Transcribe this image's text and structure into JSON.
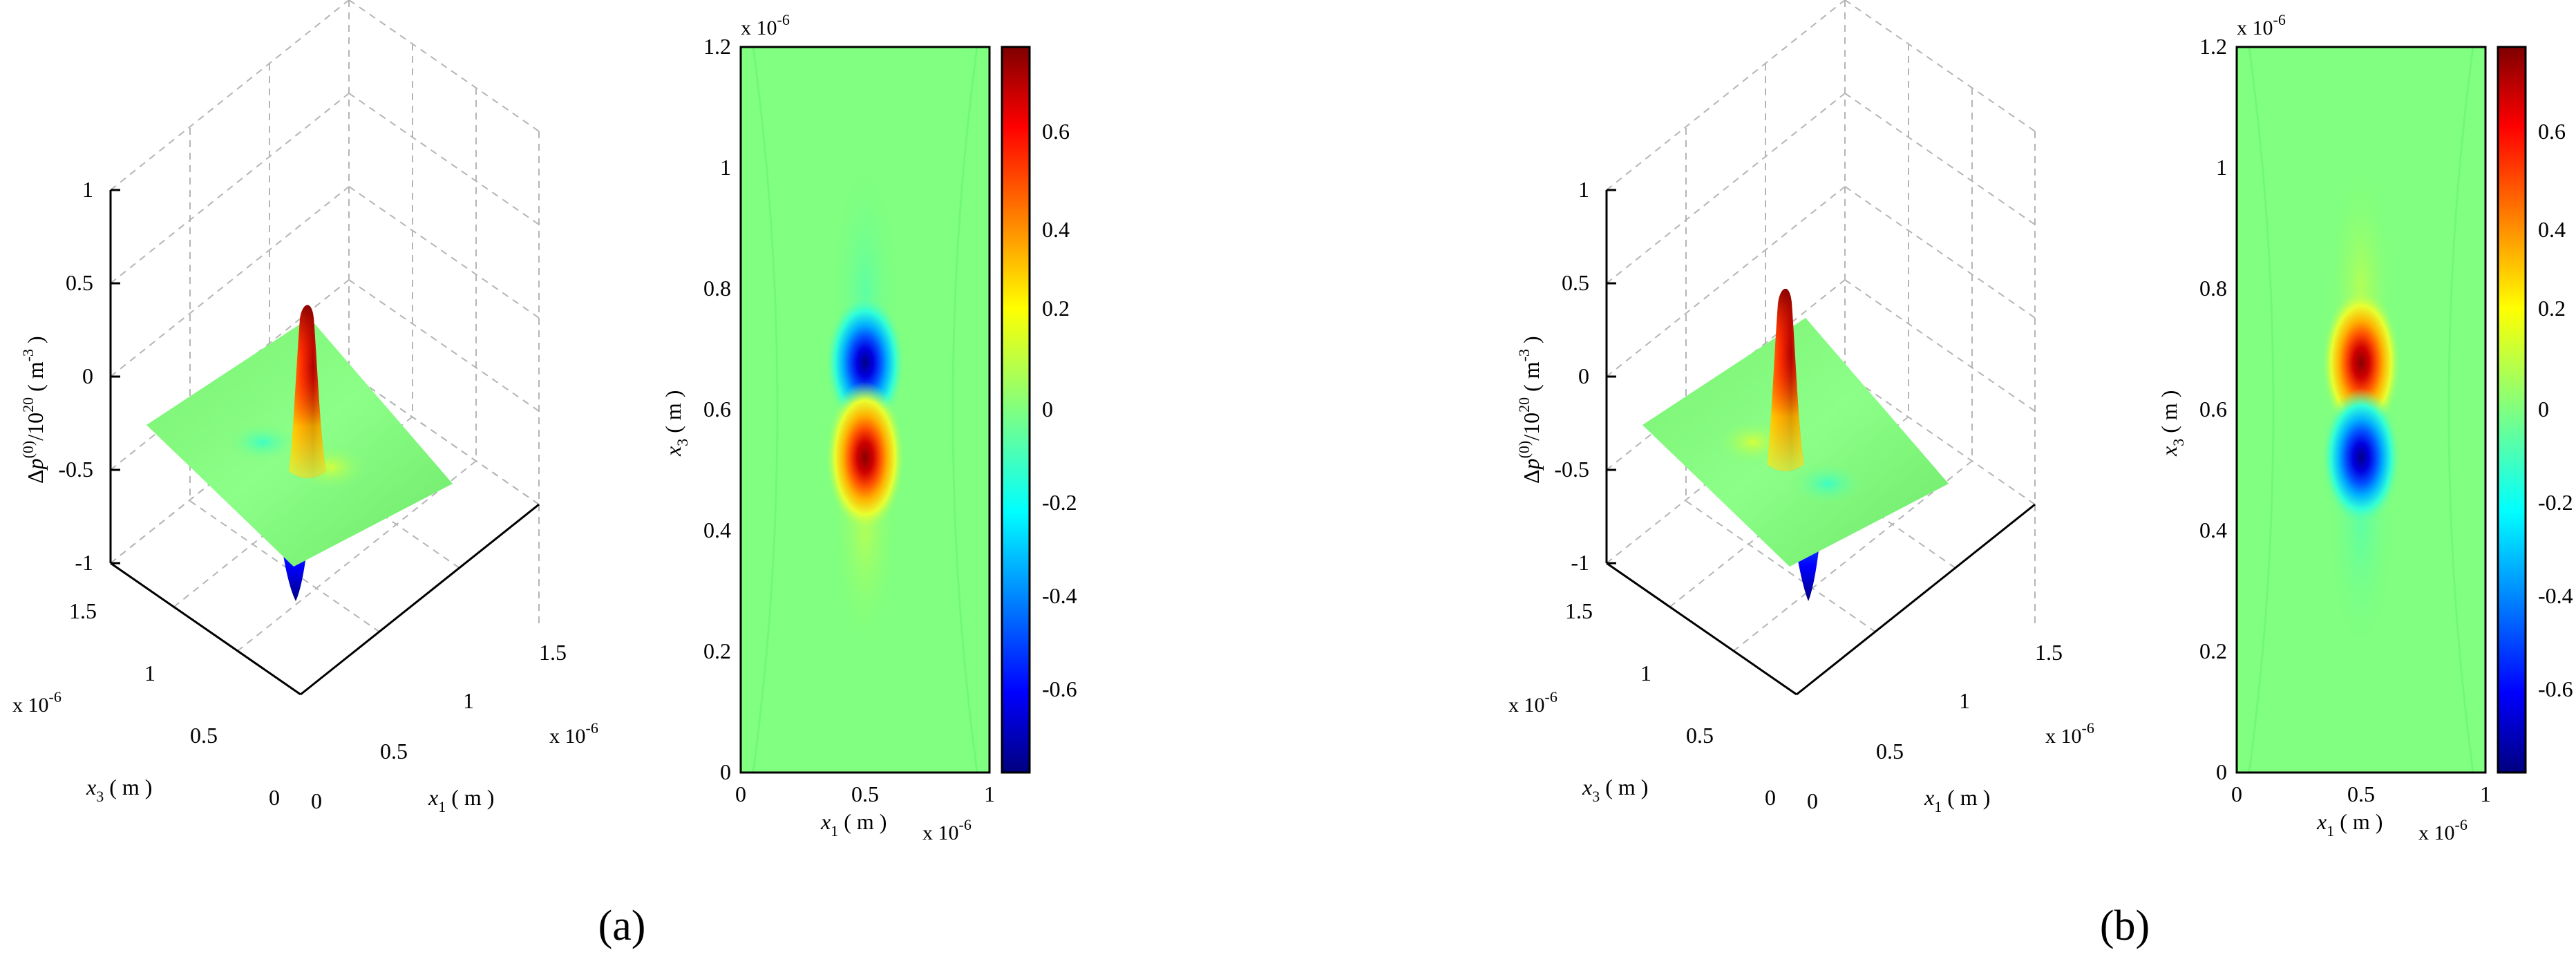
{
  "panels": [
    {
      "caption": "(a)",
      "surface": {
        "zlabel": "Δp(0)/1020 ( m-3 )",
        "zlabel_parts": {
          "delta": "Δ",
          "p": "p",
          "sup1": "(0)",
          "mid": "/10",
          "sup2": "20",
          "open": " ( m",
          "sup3": "-3",
          "close": " )"
        },
        "xlabel": {
          "main": "x",
          "sub": "1",
          "unit": " ( m )"
        },
        "ylabel": {
          "main": "x",
          "sub": "3",
          "unit": " ( m )"
        },
        "zticks": [
          "1",
          "0.5",
          "0",
          "-0.5",
          "-1"
        ],
        "xticks": [
          "0",
          "0.5",
          "1",
          "1.5"
        ],
        "yticks": [
          "0",
          "0.5",
          "1",
          "1.5"
        ],
        "xexp": {
          "base": "x 10",
          "exp": "-6"
        },
        "yexp": {
          "base": "x 10",
          "exp": "-6"
        }
      },
      "contour": {
        "xlabel": {
          "main": "x",
          "sub": "1",
          "unit": " ( m )"
        },
        "ylabel": {
          "main": "x",
          "sub": "3",
          "unit": " ( m )"
        },
        "xticks": [
          "0",
          "0.5",
          "1"
        ],
        "yticks": [
          "0",
          "0.2",
          "0.4",
          "0.6",
          "0.8",
          "1",
          "1.2"
        ],
        "xexp": {
          "base": "x 10",
          "exp": "-6"
        },
        "yexp": {
          "base": "x 10",
          "exp": "-6"
        },
        "cticks": [
          "0.6",
          "0.4",
          "0.2",
          "0",
          "-0.2",
          "-0.4",
          "-0.6"
        ]
      }
    },
    {
      "caption": "(b)",
      "surface": {
        "zlabel": "Δp(0)/1020 ( m-3 )",
        "zlabel_parts": {
          "delta": "Δ",
          "p": "p",
          "sup1": "(0)",
          "mid": "/10",
          "sup2": "20",
          "open": " ( m",
          "sup3": "-3",
          "close": " )"
        },
        "xlabel": {
          "main": "x",
          "sub": "1",
          "unit": " ( m )"
        },
        "ylabel": {
          "main": "x",
          "sub": "3",
          "unit": " ( m )"
        },
        "zticks": [
          "1",
          "0.5",
          "0",
          "-0.5",
          "-1"
        ],
        "xticks": [
          "0",
          "0.5",
          "1",
          "1.5"
        ],
        "yticks": [
          "0",
          "0.5",
          "1",
          "1.5"
        ],
        "xexp": {
          "base": "x 10",
          "exp": "-6"
        },
        "yexp": {
          "base": "x 10",
          "exp": "-6"
        }
      },
      "contour": {
        "xlabel": {
          "main": "x",
          "sub": "1",
          "unit": " ( m )"
        },
        "ylabel": {
          "main": "x",
          "sub": "3",
          "unit": " ( m )"
        },
        "xticks": [
          "0",
          "0.5",
          "1"
        ],
        "yticks": [
          "0",
          "0.2",
          "0.4",
          "0.6",
          "0.8",
          "1",
          "1.2"
        ],
        "xexp": {
          "base": "x 10",
          "exp": "-6"
        },
        "yexp": {
          "base": "x 10",
          "exp": "-6"
        },
        "cticks": [
          "0.6",
          "0.4",
          "0.2",
          "0",
          "-0.2",
          "-0.4",
          "-0.6"
        ]
      }
    }
  ],
  "chart_data": [
    {
      "type": "heatmap",
      "panel": "(a)",
      "view": "3d-surface",
      "zlim": [
        -1,
        1
      ],
      "xlim": [
        0,
        1.5e-06
      ],
      "ylim": [
        0,
        1.5e-06
      ],
      "peaks": [
        {
          "x1": 5e-07,
          "x3": 5.5e-07,
          "value": 0.78,
          "sign": "positive"
        },
        {
          "x1": 5e-07,
          "x3": 6.5e-07,
          "value": -0.78,
          "sign": "negative"
        }
      ]
    },
    {
      "type": "heatmap",
      "panel": "(a)",
      "view": "contour",
      "xlim": [
        0,
        1e-06
      ],
      "ylim": [
        0,
        1.2e-06
      ],
      "clim": [
        -0.78,
        0.78
      ],
      "colormap": "jet",
      "peaks": [
        {
          "x1": 5e-07,
          "x3": 6.6e-07,
          "value": -0.78
        },
        {
          "x1": 5e-07,
          "x3": 5.4e-07,
          "value": 0.78
        }
      ]
    },
    {
      "type": "heatmap",
      "panel": "(b)",
      "view": "3d-surface",
      "zlim": [
        -1,
        1
      ],
      "xlim": [
        0,
        1.5e-06
      ],
      "ylim": [
        0,
        1.5e-06
      ],
      "peaks": [
        {
          "x1": 5e-07,
          "x3": 6.5e-07,
          "value": 0.78,
          "sign": "positive"
        },
        {
          "x1": 5e-07,
          "x3": 5.5e-07,
          "value": -0.78,
          "sign": "negative"
        }
      ]
    },
    {
      "type": "heatmap",
      "panel": "(b)",
      "view": "contour",
      "xlim": [
        0,
        1e-06
      ],
      "ylim": [
        0,
        1.2e-06
      ],
      "clim": [
        -0.78,
        0.78
      ],
      "colormap": "jet",
      "peaks": [
        {
          "x1": 5e-07,
          "x3": 6.6e-07,
          "value": 0.78
        },
        {
          "x1": 5e-07,
          "x3": 5.4e-07,
          "value": -0.78
        }
      ]
    }
  ],
  "colors": {
    "background": "#80ff80",
    "jet": [
      "#00007f",
      "#0000ff",
      "#007fff",
      "#00ffff",
      "#7fff7f",
      "#ffff00",
      "#ff7f00",
      "#ff0000",
      "#7f0000"
    ]
  }
}
